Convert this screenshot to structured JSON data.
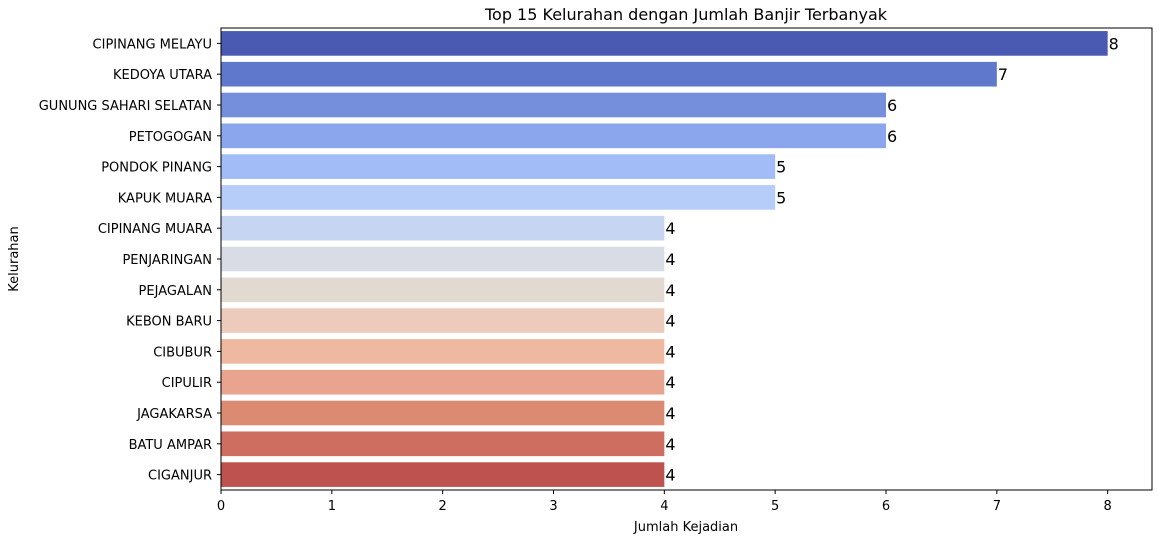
{
  "chart_data": {
    "type": "bar",
    "orientation": "horizontal",
    "title": "Top 15 Kelurahan dengan Jumlah Banjir Terbanyak",
    "xlabel": "Jumlah Kejadian",
    "ylabel": "Kelurahan",
    "xlim": [
      0,
      8.4
    ],
    "xticks": [
      "0",
      "1",
      "2",
      "3",
      "4",
      "5",
      "6",
      "7",
      "8"
    ],
    "grid": false,
    "categories": [
      "CIPINANG MELAYU",
      "KEDOYA UTARA",
      "GUNUNG SAHARI SELATAN",
      "PETOGOGAN",
      "PONDOK PINANG",
      "KAPUK MUARA",
      "CIPINANG MUARA",
      "PENJARINGAN",
      "PEJAGALAN",
      "KEBON BARU",
      "CIBUBUR",
      "CIPULIR",
      "JAGAKARSA",
      "BATU AMPAR",
      "CIGANJUR"
    ],
    "values": [
      8,
      7,
      6,
      6,
      5,
      5,
      4,
      4,
      4,
      4,
      4,
      4,
      4,
      4,
      4
    ],
    "data_labels": [
      "8",
      "7",
      "6",
      "6",
      "5",
      "5",
      "4",
      "4",
      "4",
      "4",
      "4",
      "4",
      "4",
      "4",
      "4"
    ],
    "colors": [
      "#4a5ab3",
      "#5f78cb",
      "#758fdc",
      "#8ba6ec",
      "#a1bcf7",
      "#b7cdf9",
      "#c6d5f1",
      "#d8dce4",
      "#e2d9d1",
      "#eccbbd",
      "#efb8a0",
      "#e8a48e",
      "#dc8b73",
      "#cd6e61",
      "#bd524e"
    ]
  }
}
